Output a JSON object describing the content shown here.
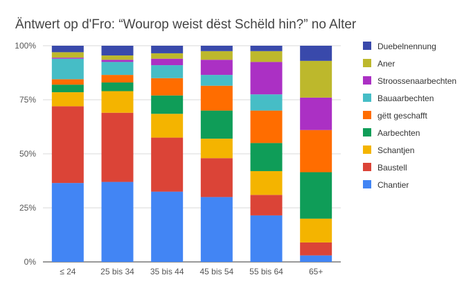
{
  "chart_data": {
    "type": "bar",
    "stacked": true,
    "normalized": true,
    "title": "Äntwert op d'Fro:  “Wourop weist dëst Schëld hin?” no Alter",
    "xlabel": "",
    "ylabel": "",
    "ylim": [
      0,
      1
    ],
    "yticks": [
      "0%",
      "25%",
      "50%",
      "75%",
      "100%"
    ],
    "grid": true,
    "legend_position": "right",
    "categories": [
      "≤ 24",
      "25 bis 34",
      "35 bis 44",
      "45 bis 54",
      "55 bis 64",
      "65+"
    ],
    "series": [
      {
        "name": "Chantier",
        "color": "#4285F4",
        "values": [
          0.365,
          0.37,
          0.325,
          0.3,
          0.215,
          0.03
        ]
      },
      {
        "name": "Baustell",
        "color": "#DB4437",
        "values": [
          0.355,
          0.32,
          0.25,
          0.18,
          0.095,
          0.06
        ]
      },
      {
        "name": "Schantjen",
        "color": "#F4B400",
        "values": [
          0.065,
          0.1,
          0.11,
          0.09,
          0.11,
          0.11
        ]
      },
      {
        "name": "Aarbechten",
        "color": "#0F9D58",
        "values": [
          0.035,
          0.04,
          0.085,
          0.13,
          0.13,
          0.215
        ]
      },
      {
        "name": "gëtt geschafft",
        "color": "#FF6D00",
        "values": [
          0.025,
          0.035,
          0.08,
          0.115,
          0.15,
          0.195
        ]
      },
      {
        "name": "Bauaarbechten",
        "color": "#46BDC6",
        "values": [
          0.095,
          0.06,
          0.06,
          0.05,
          0.075,
          0.0
        ]
      },
      {
        "name": "Stroossenaarbechten",
        "color": "#AB30C4",
        "values": [
          0.005,
          0.01,
          0.03,
          0.07,
          0.15,
          0.15
        ]
      },
      {
        "name": "Aner",
        "color": "#BDB82C",
        "values": [
          0.025,
          0.02,
          0.025,
          0.04,
          0.05,
          0.17
        ]
      },
      {
        "name": "Duebelnennung",
        "color": "#3949AB",
        "values": [
          0.03,
          0.045,
          0.035,
          0.025,
          0.025,
          0.07
        ]
      }
    ]
  }
}
